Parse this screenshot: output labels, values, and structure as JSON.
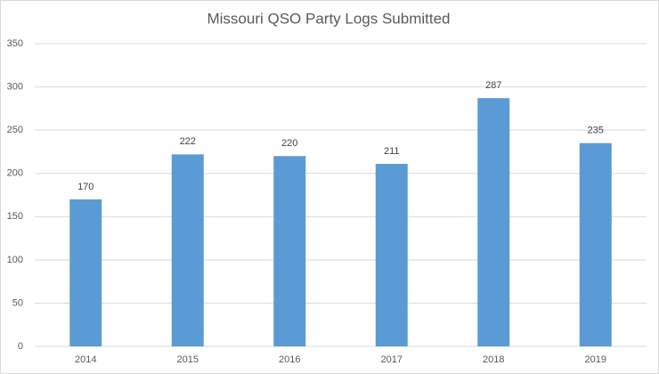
{
  "chart_data": {
    "type": "bar",
    "title": "Missouri QSO Party Logs Submitted",
    "categories": [
      "2014",
      "2015",
      "2016",
      "2017",
      "2018",
      "2019"
    ],
    "values": [
      170,
      222,
      220,
      211,
      287,
      235
    ],
    "color": "#5b9bd5",
    "ylim": [
      0,
      350
    ],
    "yticks": [
      0,
      50,
      100,
      150,
      200,
      250,
      300,
      350
    ],
    "grid": true
  }
}
